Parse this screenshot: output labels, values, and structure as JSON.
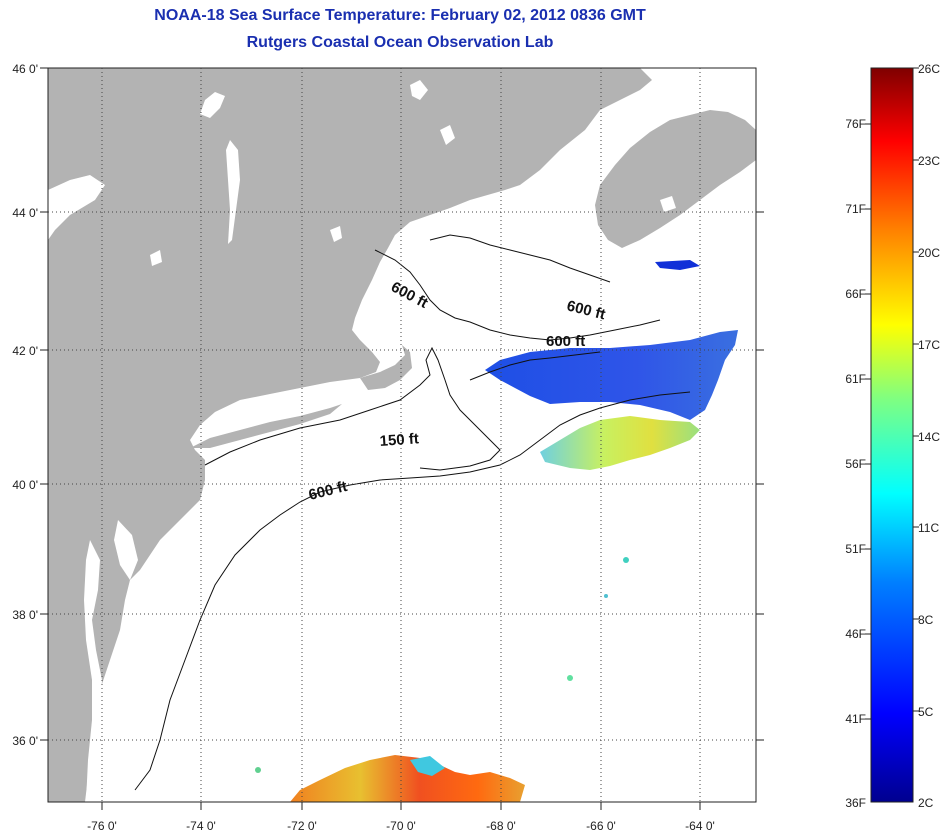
{
  "title": "NOAA-18 Sea Surface Temperature:  February 02, 2012 0836 GMT",
  "subtitle": "Rutgers Coastal Ocean Observation Lab",
  "axes": {
    "lon_labels": [
      "-76 0'",
      "-74 0'",
      "-72 0'",
      "-70 0'",
      "-68 0'",
      "-66 0'",
      "-64 0'"
    ],
    "lat_labels": [
      "46 0'",
      "44 0'",
      "42 0'",
      "40 0'",
      "38 0'",
      "36 0'"
    ]
  },
  "contours": [
    {
      "label": "600 ft"
    },
    {
      "label": "600 ft"
    },
    {
      "label": "600 ft"
    },
    {
      "label": "150 ft"
    },
    {
      "label": "600 ft"
    }
  ],
  "colorbar": {
    "fahrenheit": [
      "76F",
      "71F",
      "66F",
      "61F",
      "56F",
      "51F",
      "46F",
      "41F",
      "36F"
    ],
    "celsius": [
      "26C",
      "23C",
      "20C",
      "17C",
      "14C",
      "11C",
      "8C",
      "5C",
      "2C"
    ],
    "colors": [
      "#7f0000",
      "#ff0000",
      "#ff8000",
      "#ffff00",
      "#80ff80",
      "#00ffff",
      "#0080ff",
      "#0000ff",
      "#00008f"
    ]
  },
  "colors": {
    "land": "#b3b3b3",
    "ocean": "#ffffff",
    "title": "#1a2fb0"
  }
}
